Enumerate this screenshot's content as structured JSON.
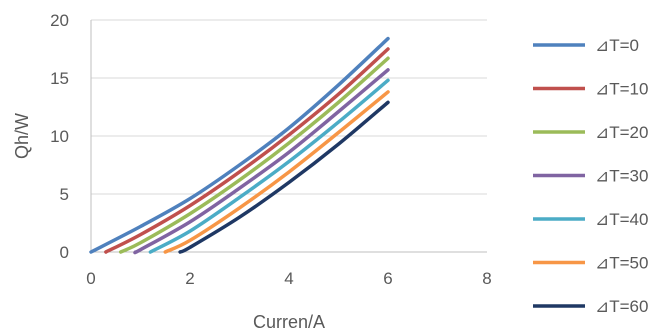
{
  "chart_data": {
    "type": "line",
    "title": "",
    "xlabel": "Curren/A",
    "ylabel": "Qh/W",
    "xlim": [
      0,
      8
    ],
    "ylim": [
      0,
      20
    ],
    "xticks": [
      "0",
      "2",
      "4",
      "6",
      "8"
    ],
    "yticks": [
      "0",
      "5",
      "10",
      "15",
      "20"
    ],
    "grid": "horizontal",
    "legend": "right",
    "series": [
      {
        "name": "⊿T=0",
        "color": "#4f81bd",
        "x": [
          0,
          1,
          2,
          3,
          4,
          5,
          6
        ],
        "y": [
          0,
          2.2,
          4.6,
          7.5,
          10.7,
          14.4,
          18.4
        ]
      },
      {
        "name": "⊿T=10",
        "color": "#c0504d",
        "x": [
          0.3,
          1,
          2,
          3,
          4,
          5,
          6
        ],
        "y": [
          0,
          1.5,
          4.0,
          6.9,
          10.1,
          13.6,
          17.5
        ]
      },
      {
        "name": "⊿T=20",
        "color": "#9bbb59",
        "x": [
          0.6,
          1,
          2,
          3,
          4,
          5,
          6
        ],
        "y": [
          0,
          0.8,
          3.3,
          6.2,
          9.4,
          12.9,
          16.7
        ]
      },
      {
        "name": "⊿T=30",
        "color": "#8064a2",
        "x": [
          0.9,
          1,
          2,
          3,
          4,
          5,
          6
        ],
        "y": [
          0,
          0.2,
          2.6,
          5.5,
          8.6,
          12.1,
          15.7
        ]
      },
      {
        "name": "⊿T=40",
        "color": "#4bacc6",
        "x": [
          1.2,
          2,
          3,
          4,
          5,
          6
        ],
        "y": [
          0,
          1.8,
          4.7,
          7.8,
          11.2,
          14.8
        ]
      },
      {
        "name": "⊿T=50",
        "color": "#f79646",
        "x": [
          1.5,
          2,
          3,
          4,
          5,
          6
        ],
        "y": [
          0,
          1.0,
          3.8,
          6.9,
          10.3,
          13.8
        ]
      },
      {
        "name": "⊿T=60",
        "color": "#1f3864",
        "x": [
          1.8,
          2,
          3,
          4,
          5,
          6
        ],
        "y": [
          0,
          0.4,
          3.0,
          6.0,
          9.3,
          12.9
        ]
      }
    ]
  }
}
